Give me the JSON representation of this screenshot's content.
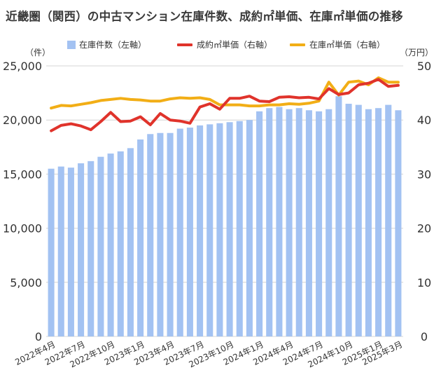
{
  "title": "近畿圏（関西）の中古マンション在庫件数、成約㎡単価、在庫㎡単価の推移",
  "legend": {
    "bar": "在庫件数（左軸）",
    "red": "成約㎡単価（右軸）",
    "gold": "在庫㎡単価（右軸）"
  },
  "units": {
    "left": "（件）",
    "right": "（万円）"
  },
  "colors": {
    "bar": "#a3c2f2",
    "red": "#e0332b",
    "gold": "#f2ae16",
    "grid": "#d4d4d4"
  },
  "chart_data": {
    "type": "bar",
    "title": "近畿圏（関西）の中古マンション在庫件数、成約㎡単価、在庫㎡単価の推移",
    "categories": [
      "2022年4月",
      "2022年5月",
      "2022年6月",
      "2022年7月",
      "2022年8月",
      "2022年9月",
      "2022年10月",
      "2022年11月",
      "2022年12月",
      "2023年1月",
      "2023年2月",
      "2023年3月",
      "2023年4月",
      "2023年5月",
      "2023年6月",
      "2023年7月",
      "2023年8月",
      "2023年9月",
      "2023年10月",
      "2023年11月",
      "2023年12月",
      "2024年1月",
      "2024年2月",
      "2024年3月",
      "2024年4月",
      "2024年5月",
      "2024年6月",
      "2024年7月",
      "2024年8月",
      "2024年9月",
      "2024年10月",
      "2024年11月",
      "2024年12月",
      "2025年1月",
      "2025年2月",
      "2025年3月"
    ],
    "xticks": [
      "2022年4月",
      "2022年7月",
      "2022年10月",
      "2023年1月",
      "2023年4月",
      "2023年7月",
      "2023年10月",
      "2024年1月",
      "2024年4月",
      "2024年7月",
      "2024年10月",
      "2025年1月",
      "2025年3月"
    ],
    "left_axis": {
      "ylim": [
        0,
        25000
      ],
      "ticks": [
        "0",
        "5,000",
        "10,000",
        "15,000",
        "20,000",
        "25,000"
      ]
    },
    "right_axis": {
      "ylim": [
        0,
        50
      ],
      "ticks": [
        "0",
        "10",
        "20",
        "30",
        "40",
        "50"
      ]
    },
    "series": [
      {
        "name": "在庫件数（左軸）",
        "type": "bar",
        "axis": "left",
        "values": [
          15500,
          15700,
          15600,
          16000,
          16200,
          16600,
          16900,
          17100,
          17400,
          18200,
          18700,
          18800,
          18800,
          19200,
          19300,
          19500,
          19600,
          19700,
          19800,
          19900,
          20000,
          20800,
          21100,
          21200,
          21000,
          21100,
          20900,
          20800,
          21000,
          22200,
          21500,
          21400,
          21000,
          21100,
          21400,
          20900
        ]
      },
      {
        "name": "成約㎡単価（右軸）",
        "type": "line",
        "axis": "right",
        "values": [
          38.0,
          39.0,
          39.3,
          38.9,
          38.2,
          39.7,
          41.4,
          39.7,
          39.8,
          40.6,
          39.1,
          41.2,
          40.0,
          39.8,
          39.4,
          42.4,
          43.0,
          42.0,
          44.0,
          44.0,
          44.4,
          43.5,
          43.4,
          44.2,
          44.3,
          44.1,
          44.2,
          43.9,
          45.8,
          44.7,
          45.0,
          46.5,
          46.8,
          47.5,
          46.2,
          46.4
        ]
      },
      {
        "name": "在庫㎡単価（右軸）",
        "type": "line",
        "axis": "right",
        "values": [
          42.2,
          42.7,
          42.6,
          42.9,
          43.2,
          43.6,
          43.8,
          44.0,
          43.8,
          43.7,
          43.5,
          43.5,
          43.9,
          44.1,
          44.0,
          44.1,
          43.8,
          42.8,
          42.8,
          42.8,
          42.6,
          42.6,
          42.8,
          42.8,
          43.0,
          42.9,
          43.1,
          43.5,
          47.0,
          44.6,
          47.0,
          47.2,
          46.5,
          47.8,
          47.0,
          47.0
        ]
      }
    ],
    "grid": true,
    "legend_position": "top"
  }
}
